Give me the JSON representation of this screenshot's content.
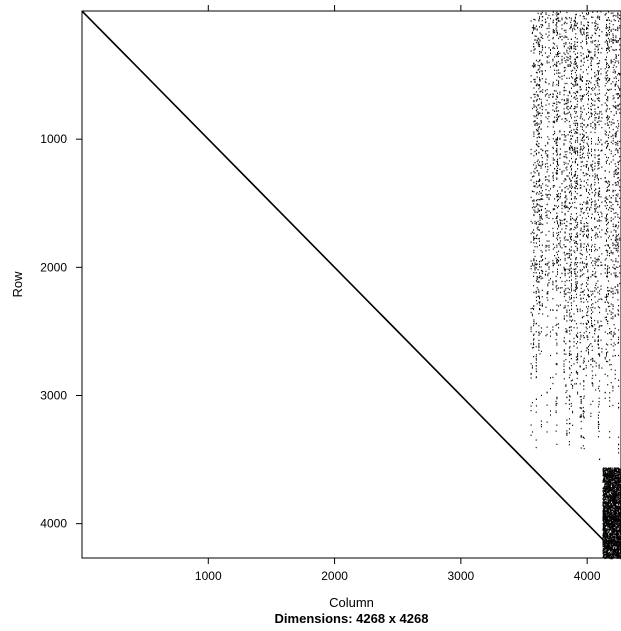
{
  "chart_data": {
    "type": "scatter",
    "subtype": "sparse-matrix-pattern",
    "title": "",
    "subtitle": "Dimensions: 4268 x 4268",
    "xlabel": "Column",
    "ylabel": "Row",
    "xlim": [
      0,
      4268
    ],
    "ylim": [
      4268,
      0
    ],
    "x_ticks": [
      1000,
      2000,
      3000,
      4000
    ],
    "y_ticks": [
      1000,
      2000,
      3000,
      4000
    ],
    "x_tick_labels": [
      "1000",
      "2000",
      "3000",
      "4000"
    ],
    "y_tick_labels": [
      "1000",
      "2000",
      "3000",
      "4000"
    ],
    "matrix": {
      "nrow": 4268,
      "ncol": 4268
    },
    "diagonal": {
      "from": [
        1,
        1
      ],
      "to": [
        4268,
        4268
      ]
    },
    "blocks": [
      {
        "name": "upper-right coupling block",
        "rows": [
          1,
          3560
        ],
        "cols": [
          3550,
          4268
        ],
        "density": "sparse"
      },
      {
        "name": "lower-right dense block",
        "rows": [
          3560,
          4268
        ],
        "cols": [
          4120,
          4268
        ],
        "density": "dense"
      }
    ],
    "grid": false,
    "legend": "none",
    "point_color": "#000000"
  }
}
